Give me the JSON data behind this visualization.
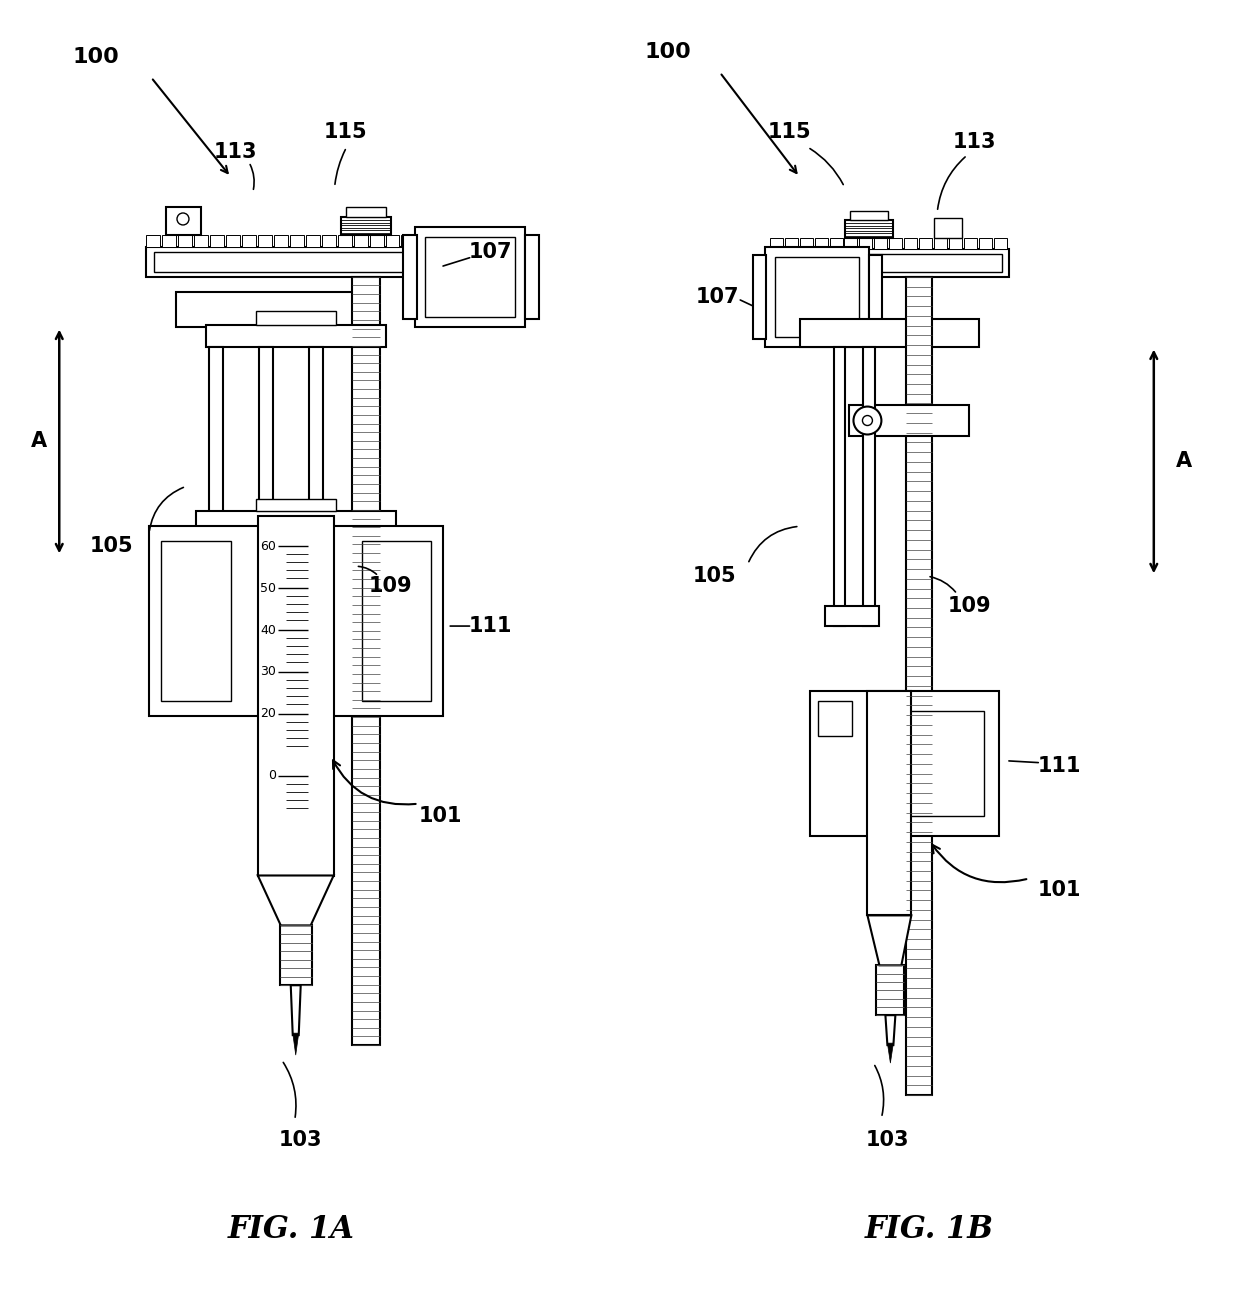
{
  "bg_color": "#ffffff",
  "fig_width": 12.4,
  "fig_height": 13.06,
  "fig1a_label": "FIG. 1A",
  "fig1b_label": "FIG. 1B"
}
